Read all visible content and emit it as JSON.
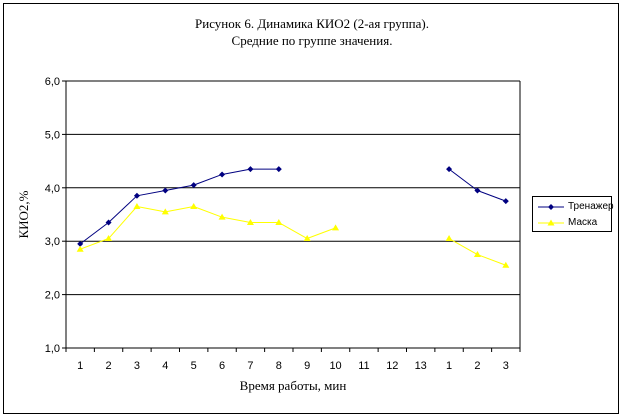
{
  "chart_data": {
    "type": "line",
    "title": "Рисунок 6. Динамика КИО2 (2-ая группа).",
    "subtitle": "Средние по группе значения.",
    "xlabel": "Время работы, мин",
    "ylabel": "КИО2,%",
    "categories": [
      "1",
      "2",
      "3",
      "4",
      "5",
      "6",
      "7",
      "8",
      "9",
      "10",
      "11",
      "12",
      "13",
      "1",
      "2",
      "3"
    ],
    "ylim": [
      1.0,
      6.0
    ],
    "yticks": [
      "1,0",
      "2,0",
      "3,0",
      "4,0",
      "5,0",
      "6,0"
    ],
    "grid": true,
    "legend_position": "right",
    "series": [
      {
        "name": "Тренажер",
        "color": "#000080",
        "marker": "diamond",
        "values": [
          2.95,
          3.35,
          3.85,
          3.95,
          4.05,
          4.25,
          4.35,
          4.35,
          null,
          null,
          null,
          null,
          null,
          4.35,
          3.95,
          3.75
        ]
      },
      {
        "name": "Маска",
        "color": "#FFFF00",
        "marker": "triangle",
        "values": [
          2.85,
          3.05,
          3.65,
          3.55,
          3.65,
          3.45,
          3.35,
          3.35,
          3.05,
          3.25,
          null,
          null,
          null,
          3.05,
          2.75,
          2.55
        ]
      }
    ]
  }
}
